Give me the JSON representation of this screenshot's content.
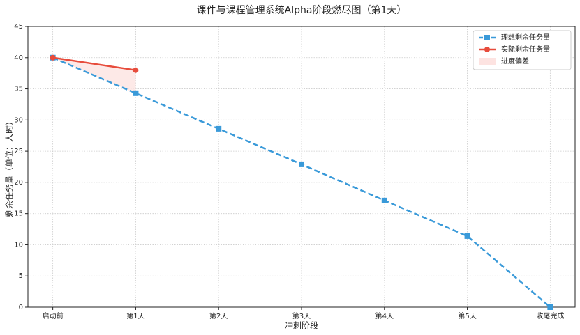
{
  "chart_data": {
    "type": "line",
    "title": "课件与课程管理系统Alpha阶段燃尽图（第1天）",
    "xlabel": "冲刺阶段",
    "ylabel": "剩余任务量（单位：人时）",
    "categories": [
      "启动前",
      "第1天",
      "第2天",
      "第3天",
      "第4天",
      "第5天",
      "收尾完成"
    ],
    "series": [
      {
        "name": "理想剩余任务量",
        "color": "#3a9ad9",
        "marker": "square",
        "dash": true,
        "values": [
          40,
          34.3,
          28.6,
          22.9,
          17.1,
          11.4,
          0
        ]
      },
      {
        "name": "实际剩余任务量",
        "color": "#e74c3c",
        "marker": "circle",
        "dash": false,
        "values": [
          40,
          38,
          null,
          null,
          null,
          null,
          null
        ]
      }
    ],
    "fill_between": {
      "name": "进度偏差",
      "color": "#fde3e1"
    },
    "ylim": [
      0,
      45
    ],
    "yticks": [
      0,
      5,
      10,
      15,
      20,
      25,
      30,
      35,
      40,
      45
    ],
    "grid": true,
    "legend": "upper right"
  }
}
